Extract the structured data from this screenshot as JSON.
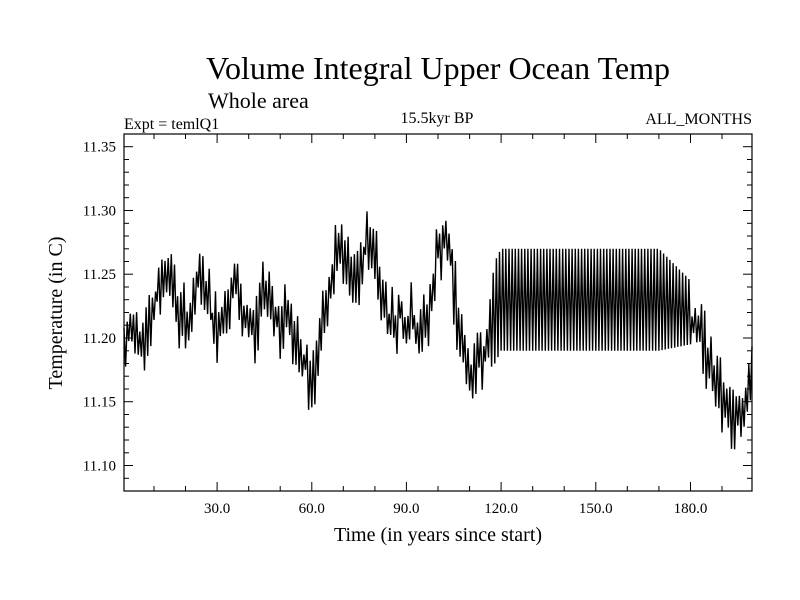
{
  "chart_data": {
    "type": "line",
    "title": "Volume Integral Upper Ocean Temp",
    "subtitle": "Whole area",
    "annotations": {
      "left": "Expt = temlQ1",
      "center": "15.5kyr BP",
      "right": "ALL_MONTHS"
    },
    "xlabel": "Time (in years since start)",
    "ylabel": "Temperature (in C)",
    "xlim": [
      0.5,
      199.5
    ],
    "ylim": [
      11.08,
      11.36
    ],
    "x_ticks": [
      30,
      60,
      90,
      120,
      150,
      180
    ],
    "x_tick_labels": [
      "30.0",
      "60.0",
      "90.0",
      "120.0",
      "150.0",
      "180.0"
    ],
    "y_ticks": [
      11.1,
      11.15,
      11.2,
      11.25,
      11.3,
      11.35
    ],
    "y_tick_labels": [
      "11.10",
      "11.15",
      "11.20",
      "11.25",
      "11.30",
      "11.35"
    ],
    "grid": false,
    "legend": "none",
    "line_color": "#000000",
    "series": [
      {
        "x": [
          0.5,
          2,
          4,
          6,
          8,
          10,
          12,
          14,
          16,
          18,
          20,
          22,
          24,
          26,
          28,
          30,
          32,
          34,
          36,
          38,
          40,
          42,
          44,
          46,
          48,
          50,
          52,
          54,
          56,
          58,
          60,
          62,
          64,
          66,
          68,
          70,
          72,
          74,
          76,
          78,
          80,
          82,
          84,
          86,
          88,
          90,
          92,
          94,
          96,
          98,
          100,
          102,
          104,
          106,
          108,
          110,
          112,
          114,
          116,
          118,
          120,
          130,
          140,
          150,
          160,
          170,
          180,
          182,
          184,
          186,
          188,
          190,
          192,
          194,
          196,
          198,
          199.5
        ],
        "center": [
          11.19,
          11.2,
          11.21,
          11.2,
          11.21,
          11.22,
          11.24,
          11.26,
          11.24,
          11.22,
          11.21,
          11.22,
          11.24,
          11.25,
          11.22,
          11.21,
          11.22,
          11.23,
          11.24,
          11.22,
          11.21,
          11.2,
          11.23,
          11.24,
          11.22,
          11.21,
          11.22,
          11.2,
          11.19,
          11.18,
          11.17,
          11.19,
          11.21,
          11.24,
          11.27,
          11.26,
          11.25,
          11.24,
          11.26,
          11.28,
          11.27,
          11.24,
          11.22,
          11.21,
          11.22,
          11.21,
          11.22,
          11.2,
          11.21,
          11.23,
          11.27,
          11.28,
          11.26,
          11.22,
          11.19,
          11.17,
          11.18,
          11.19,
          11.2,
          11.22,
          11.23,
          11.23,
          11.23,
          11.23,
          11.23,
          11.23,
          11.22,
          11.21,
          11.2,
          11.18,
          11.17,
          11.16,
          11.14,
          11.13,
          11.14,
          11.16,
          11.18
        ],
        "amplitude": [
          0.05,
          0.05,
          0.05,
          0.05,
          0.05,
          0.05,
          0.05,
          0.05,
          0.05,
          0.05,
          0.05,
          0.05,
          0.05,
          0.05,
          0.05,
          0.05,
          0.05,
          0.05,
          0.05,
          0.05,
          0.05,
          0.05,
          0.05,
          0.05,
          0.05,
          0.05,
          0.05,
          0.05,
          0.05,
          0.05,
          0.05,
          0.05,
          0.05,
          0.05,
          0.05,
          0.05,
          0.05,
          0.05,
          0.05,
          0.05,
          0.05,
          0.05,
          0.05,
          0.05,
          0.05,
          0.05,
          0.05,
          0.05,
          0.05,
          0.05,
          0.05,
          0.05,
          0.05,
          0.05,
          0.05,
          0.05,
          0.05,
          0.05,
          0.05,
          0.08,
          0.08,
          0.08,
          0.08,
          0.08,
          0.08,
          0.08,
          0.05,
          0.05,
          0.05,
          0.05,
          0.05,
          0.05,
          0.05,
          0.05,
          0.05,
          0.05,
          0.05
        ]
      }
    ]
  }
}
